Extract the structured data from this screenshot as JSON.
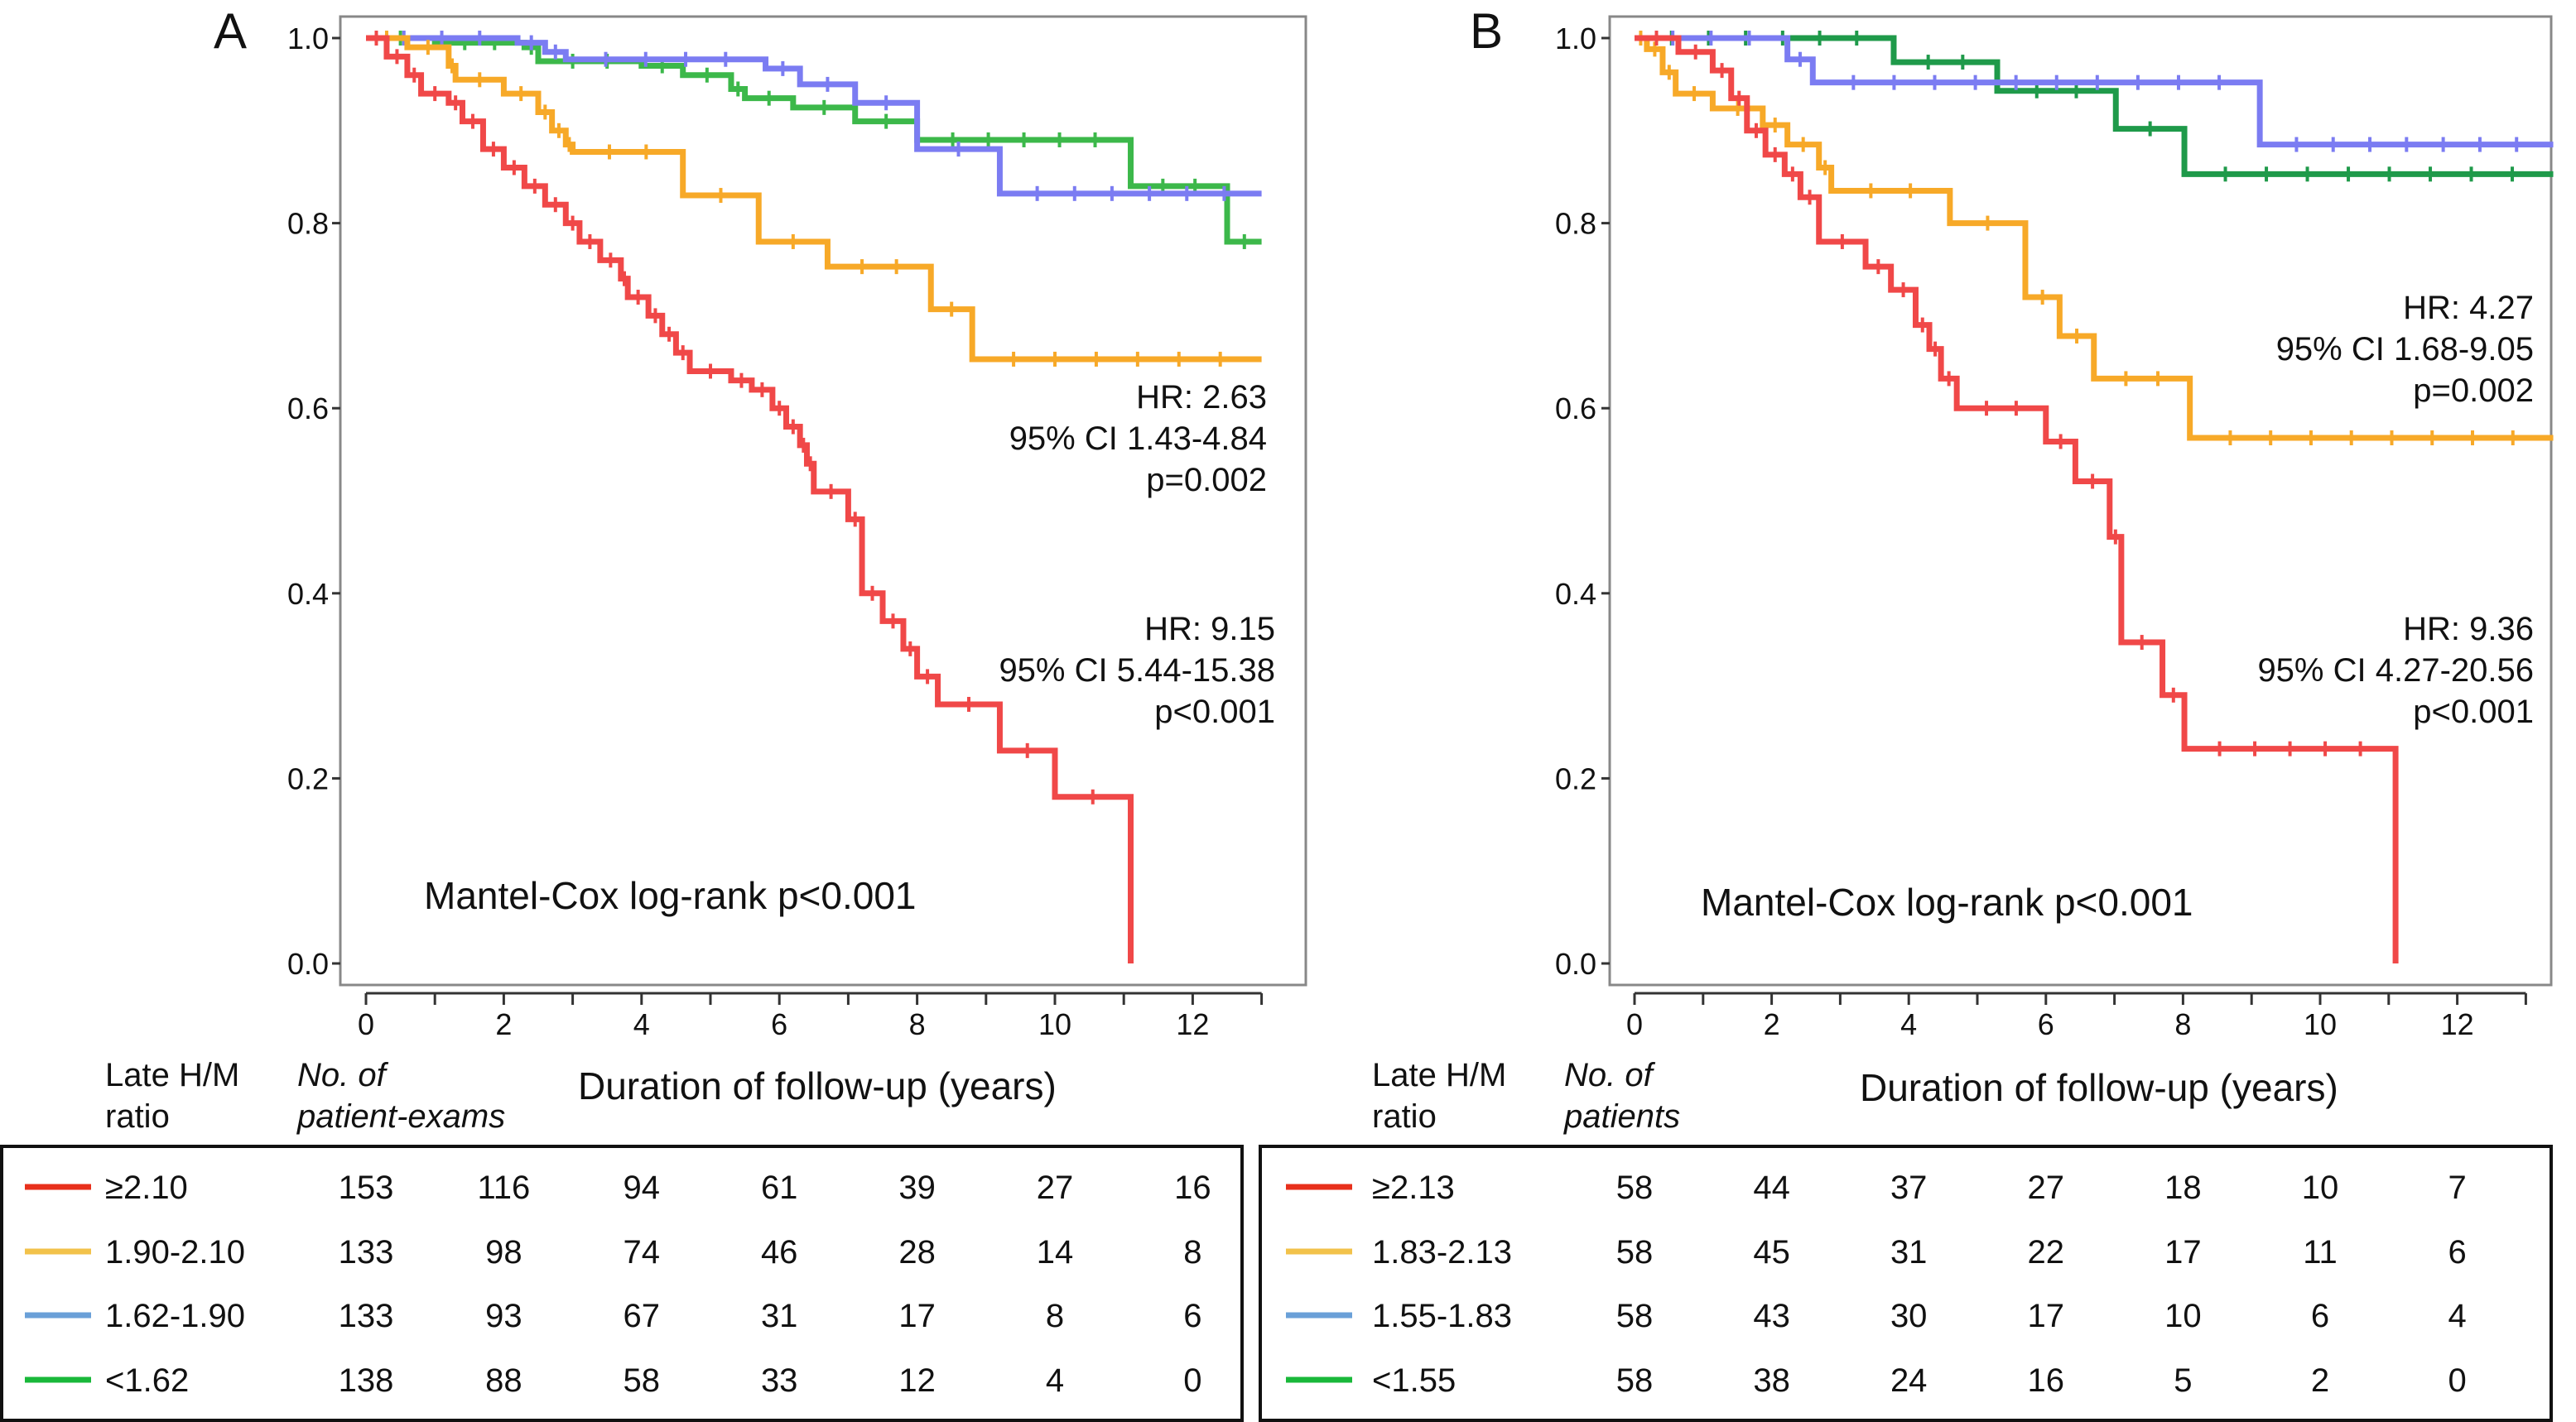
{
  "chart_data": [
    {
      "panel": "A",
      "type": "line",
      "step": true,
      "xlabel": "Duration of follow-up (years)",
      "xlim": [
        0,
        13.7
      ],
      "ylim": [
        0,
        1.0
      ],
      "xticks": [
        "0",
        "2",
        "4",
        "6",
        "8",
        "10",
        "12"
      ],
      "yticks": [
        "0.0",
        "0.2",
        "0.4",
        "0.6",
        "0.8",
        "1.0"
      ],
      "annotation_text": "Mantel-Cox log-rank p<0.001",
      "hr_orange": [
        "HR: 2.63",
        "95% CI 1.43-4.84",
        "p=0.002"
      ],
      "hr_red": [
        "HR: 9.15",
        "95% CI 5.44-15.38",
        "p<0.001"
      ],
      "series": [
        {
          "color": "#f04848",
          "end": 11.1,
          "points": [
            [
              0,
              1
            ],
            [
              0.3,
              0.98
            ],
            [
              0.6,
              0.96
            ],
            [
              0.8,
              0.94
            ],
            [
              1.2,
              0.93
            ],
            [
              1.4,
              0.91
            ],
            [
              1.7,
              0.88
            ],
            [
              2.0,
              0.86
            ],
            [
              2.3,
              0.84
            ],
            [
              2.6,
              0.82
            ],
            [
              2.9,
              0.8
            ],
            [
              3.1,
              0.78
            ],
            [
              3.4,
              0.76
            ],
            [
              3.7,
              0.74
            ],
            [
              3.8,
              0.72
            ],
            [
              4.1,
              0.7
            ],
            [
              4.3,
              0.68
            ],
            [
              4.5,
              0.66
            ],
            [
              4.7,
              0.64
            ],
            [
              5.3,
              0.63
            ],
            [
              5.6,
              0.62
            ],
            [
              5.9,
              0.6
            ],
            [
              6.1,
              0.58
            ],
            [
              6.3,
              0.56
            ],
            [
              6.4,
              0.54
            ],
            [
              6.5,
              0.51
            ],
            [
              7.0,
              0.48
            ],
            [
              7.2,
              0.4
            ],
            [
              7.5,
              0.37
            ],
            [
              7.8,
              0.34
            ],
            [
              8.0,
              0.31
            ],
            [
              8.3,
              0.28
            ],
            [
              9.2,
              0.23
            ],
            [
              10.0,
              0.18
            ],
            [
              11.1,
              0.0
            ]
          ]
        },
        {
          "color": "#f7a928",
          "end": 13.0,
          "points": [
            [
              0,
              1
            ],
            [
              0.6,
              0.99
            ],
            [
              1.2,
              0.97
            ],
            [
              1.3,
              0.955
            ],
            [
              2.0,
              0.94
            ],
            [
              2.5,
              0.92
            ],
            [
              2.7,
              0.9
            ],
            [
              2.9,
              0.885
            ],
            [
              3.0,
              0.877
            ],
            [
              4.6,
              0.83
            ],
            [
              5.7,
              0.78
            ],
            [
              6.7,
              0.753
            ],
            [
              8.2,
              0.707
            ],
            [
              8.8,
              0.653
            ]
          ]
        },
        {
          "color": "#7b7cf2",
          "end": 13.0,
          "points": [
            [
              0,
              1
            ],
            [
              2.2,
              0.995
            ],
            [
              2.6,
              0.985
            ],
            [
              2.9,
              0.977
            ],
            [
              5.8,
              0.967
            ],
            [
              6.3,
              0.95
            ],
            [
              7.1,
              0.93
            ],
            [
              8.0,
              0.88
            ],
            [
              9.2,
              0.832
            ]
          ]
        },
        {
          "color": "#3cb84a",
          "end": 13.0,
          "points": [
            [
              0,
              1
            ],
            [
              1.0,
              0.995
            ],
            [
              2.3,
              0.99
            ],
            [
              2.5,
              0.975
            ],
            [
              4.0,
              0.97
            ],
            [
              4.6,
              0.96
            ],
            [
              5.3,
              0.945
            ],
            [
              5.5,
              0.935
            ],
            [
              6.2,
              0.925
            ],
            [
              7.1,
              0.91
            ],
            [
              8.0,
              0.89
            ],
            [
              11.1,
              0.84
            ],
            [
              12.5,
              0.78
            ]
          ]
        }
      ],
      "table": {
        "col1_header": [
          "Late H/M",
          "ratio"
        ],
        "col2_header": [
          "No. of",
          "patient-exams"
        ],
        "rows": [
          {
            "label": "≥2.10",
            "color": "#e8301c",
            "values": [
              "153",
              "116",
              "94",
              "61",
              "39",
              "27",
              "16"
            ]
          },
          {
            "label": "1.90-2.10",
            "color": "#f2c24a",
            "values": [
              "133",
              "98",
              "74",
              "46",
              "28",
              "14",
              "8"
            ]
          },
          {
            "label": "1.62-1.90",
            "color": "#6aa0d8",
            "values": [
              "133",
              "93",
              "67",
              "31",
              "17",
              "8",
              "6"
            ]
          },
          {
            "label": "<1.62",
            "color": "#19b83a",
            "values": [
              "138",
              "88",
              "58",
              "33",
              "12",
              "4",
              "0"
            ]
          }
        ]
      }
    },
    {
      "panel": "B",
      "type": "line",
      "step": true,
      "xlabel": "Duration of follow-up (years)",
      "xlim": [
        0,
        13.7
      ],
      "ylim": [
        0,
        1.0
      ],
      "xticks": [
        "0",
        "2",
        "4",
        "6",
        "8",
        "10",
        "12"
      ],
      "yticks": [
        "0.0",
        "0.2",
        "0.4",
        "0.6",
        "0.8",
        "1.0"
      ],
      "annotation_text": "Mantel-Cox log-rank p<0.001",
      "hr_orange": [
        "HR: 4.27",
        "95% CI 1.68-9.05",
        "p=0.002"
      ],
      "hr_red": [
        "HR: 9.36",
        "95% CI 4.27-20.56",
        "p<0.001"
      ],
      "series": [
        {
          "color": "#f04848",
          "end": 11.1,
          "points": [
            [
              0,
              1
            ],
            [
              0.64,
              0.985
            ],
            [
              1.14,
              0.965
            ],
            [
              1.41,
              0.935
            ],
            [
              1.64,
              0.9
            ],
            [
              1.91,
              0.874
            ],
            [
              2.19,
              0.853
            ],
            [
              2.42,
              0.828
            ],
            [
              2.69,
              0.78
            ],
            [
              3.37,
              0.753
            ],
            [
              3.74,
              0.728
            ],
            [
              4.1,
              0.69
            ],
            [
              4.3,
              0.664
            ],
            [
              4.47,
              0.632
            ],
            [
              4.7,
              0.6
            ],
            [
              6.0,
              0.564
            ],
            [
              6.43,
              0.521
            ],
            [
              6.93,
              0.461
            ],
            [
              7.1,
              0.347
            ],
            [
              7.7,
              0.29
            ],
            [
              8.02,
              0.232
            ],
            [
              11.1,
              0.0
            ]
          ]
        },
        {
          "color": "#f7a928",
          "end": 13.4,
          "points": [
            [
              0,
              1
            ],
            [
              0.18,
              0.988
            ],
            [
              0.41,
              0.963
            ],
            [
              0.6,
              0.94
            ],
            [
              1.14,
              0.924
            ],
            [
              1.87,
              0.906
            ],
            [
              2.23,
              0.885
            ],
            [
              2.69,
              0.86
            ],
            [
              2.87,
              0.835
            ],
            [
              4.6,
              0.8
            ],
            [
              5.7,
              0.72
            ],
            [
              6.2,
              0.678
            ],
            [
              6.7,
              0.632
            ],
            [
              8.1,
              0.568
            ]
          ]
        },
        {
          "color": "#7b7cf2",
          "end": 13.4,
          "points": [
            [
              0,
              1
            ],
            [
              2.23,
              0.977
            ],
            [
              2.6,
              0.952
            ],
            [
              9.12,
              0.885
            ]
          ]
        },
        {
          "color": "#1f9a4a",
          "end": 13.4,
          "points": [
            [
              0,
              1
            ],
            [
              3.78,
              0.974
            ],
            [
              5.29,
              0.943
            ],
            [
              7.02,
              0.902
            ],
            [
              8.02,
              0.853
            ]
          ]
        }
      ],
      "table": {
        "col1_header": [
          "Late H/M",
          "ratio"
        ],
        "col2_header": [
          "No. of",
          "patients"
        ],
        "rows": [
          {
            "label": "≥2.13",
            "color": "#e8301c",
            "values": [
              "58",
              "44",
              "37",
              "27",
              "18",
              "10",
              "7"
            ]
          },
          {
            "label": "1.83-2.13",
            "color": "#f2c24a",
            "values": [
              "58",
              "45",
              "31",
              "22",
              "17",
              "11",
              "6"
            ]
          },
          {
            "label": "1.55-1.83",
            "color": "#6aa0d8",
            "values": [
              "58",
              "43",
              "30",
              "17",
              "10",
              "6",
              "4"
            ]
          },
          {
            "label": "<1.55",
            "color": "#19b83a",
            "values": [
              "58",
              "38",
              "24",
              "16",
              "5",
              "2",
              "0"
            ]
          }
        ]
      }
    }
  ]
}
